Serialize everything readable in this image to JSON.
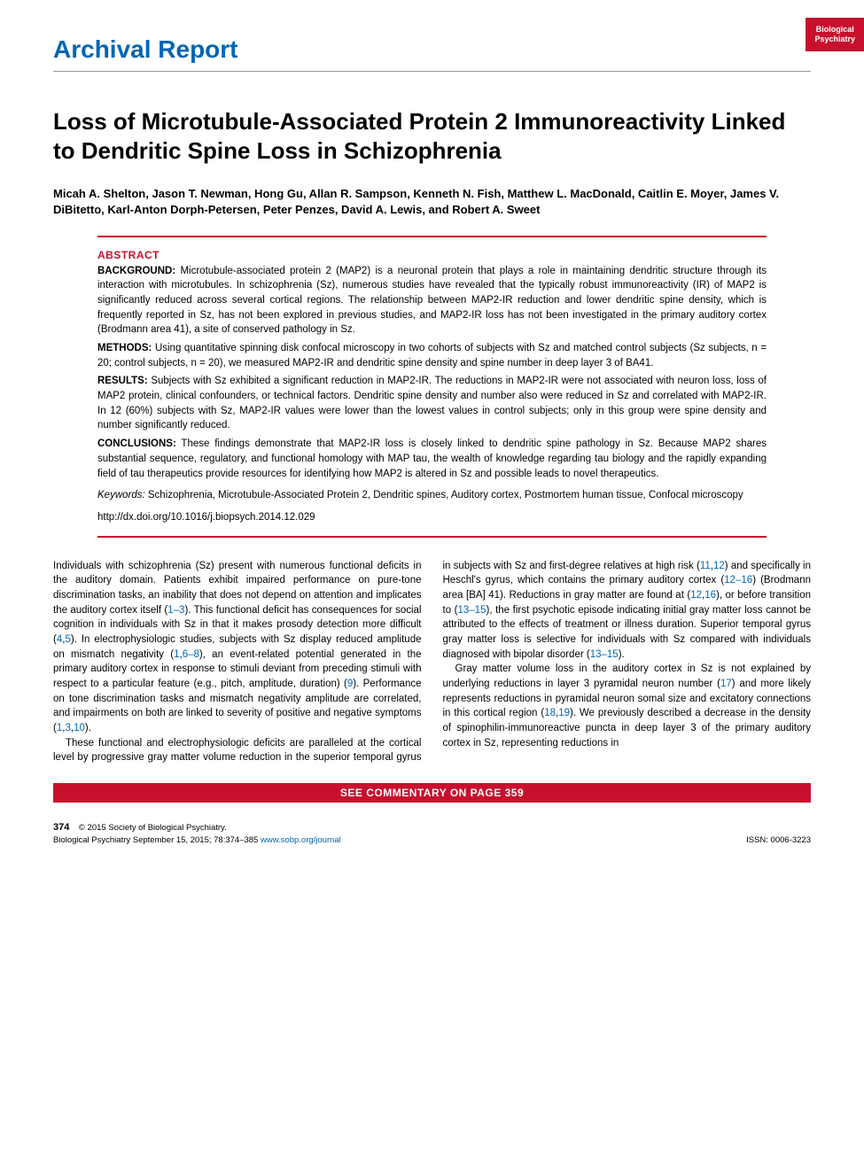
{
  "journal_tab": {
    "line1": "Biological",
    "line2": "Psychiatry",
    "bg_color": "#c8102e",
    "text_color": "#ffffff"
  },
  "section_label": "Archival Report",
  "section_label_color": "#0066b3",
  "article": {
    "title": "Loss of Microtubule-Associated Protein 2 Immunoreactivity Linked to Dendritic Spine Loss in Schizophrenia",
    "authors": "Micah A. Shelton, Jason T. Newman, Hong Gu, Allan R. Sampson, Kenneth N. Fish, Matthew L. MacDonald, Caitlin E. Moyer, James V. DiBitetto, Karl-Anton Dorph-Petersen, Peter Penzes, David A. Lewis, and Robert A. Sweet"
  },
  "abstract": {
    "heading": "ABSTRACT",
    "heading_color": "#c8102e",
    "background": {
      "label": "BACKGROUND:",
      "text": "Microtubule-associated protein 2 (MAP2) is a neuronal protein that plays a role in maintaining dendritic structure through its interaction with microtubules. In schizophrenia (Sz), numerous studies have revealed that the typically robust immunoreactivity (IR) of MAP2 is significantly reduced across several cortical regions. The relationship between MAP2-IR reduction and lower dendritic spine density, which is frequently reported in Sz, has not been explored in previous studies, and MAP2-IR loss has not been investigated in the primary auditory cortex (Brodmann area 41), a site of conserved pathology in Sz."
    },
    "methods": {
      "label": "METHODS:",
      "text": "Using quantitative spinning disk confocal microscopy in two cohorts of subjects with Sz and matched control subjects (Sz subjects, n = 20; control subjects, n = 20), we measured MAP2-IR and dendritic spine density and spine number in deep layer 3 of BA41."
    },
    "results": {
      "label": "RESULTS:",
      "text": "Subjects with Sz exhibited a significant reduction in MAP2-IR. The reductions in MAP2-IR were not associated with neuron loss, loss of MAP2 protein, clinical confounders, or technical factors. Dendritic spine density and number also were reduced in Sz and correlated with MAP2-IR. In 12 (60%) subjects with Sz, MAP2-IR values were lower than the lowest values in control subjects; only in this group were spine density and number significantly reduced."
    },
    "conclusions": {
      "label": "CONCLUSIONS:",
      "text": "These findings demonstrate that MAP2-IR loss is closely linked to dendritic spine pathology in Sz. Because MAP2 shares substantial sequence, regulatory, and functional homology with MAP tau, the wealth of knowledge regarding tau biology and the rapidly expanding field of tau therapeutics provide resources for identifying how MAP2 is altered in Sz and possible leads to novel therapeutics."
    },
    "keywords": {
      "label": "Keywords:",
      "text": "Schizophrenia, Microtubule-Associated Protein 2, Dendritic spines, Auditory cortex, Postmortem human tissue, Confocal microscopy"
    },
    "doi": "http://dx.doi.org/10.1016/j.biopsych.2014.12.029"
  },
  "body": {
    "p1_a": "Individuals with schizophrenia (Sz) present with numerous functional deficits in the auditory domain. Patients exhibit impaired performance on pure-tone discrimination tasks, an inability that does not depend on attention and implicates the auditory cortex itself (",
    "p1_ref1": "1–3",
    "p1_b": "). This functional deficit has consequences for social cognition in individuals with Sz in that it makes prosody detection more difficult (",
    "p1_ref2": "4",
    "p1_c": ",",
    "p1_ref3": "5",
    "p1_d": "). In electrophysiologic studies, subjects with Sz display reduced amplitude on mismatch negativity (",
    "p1_ref4": "1",
    "p1_e": ",",
    "p1_ref5": "6–8",
    "p1_f": "), an event-related potential generated in the primary auditory cortex in response to stimuli deviant from preceding stimuli with respect to a particular feature (e.g., pitch, amplitude, duration) (",
    "p1_ref6": "9",
    "p1_g": "). Performance on tone discrimination tasks and mismatch negativity amplitude are correlated, and impairments on both are linked to severity of positive and negative symptoms (",
    "p1_ref7": "1",
    "p1_h": ",",
    "p1_ref8": "3",
    "p1_i": ",",
    "p1_ref9": "10",
    "p1_j": ").",
    "p2_a": "These functional and electrophysiologic deficits are paralleled at the cortical level by progressive gray matter volume reduction in the superior temporal gyrus in subjects with Sz and first-degree relatives at high risk (",
    "p2_ref1": "11",
    "p2_b": ",",
    "p2_ref2": "12",
    "p2_c": ") and specifically in Heschl's gyrus, which contains the primary auditory cortex (",
    "p2_ref3": "12–16",
    "p2_d": ") (Brodmann area [BA] 41). Reductions in gray matter are found at (",
    "p2_ref4": "12",
    "p2_e": ",",
    "p2_ref5": "16",
    "p2_f": "), or before transition to (",
    "p2_ref6": "13–15",
    "p2_g": "), the first psychotic episode indicating initial gray matter loss cannot be attributed to the effects of treatment or illness duration. Superior temporal gyrus gray matter loss is selective for individuals with Sz compared with individuals diagnosed with bipolar disorder (",
    "p2_ref7": "13–15",
    "p2_h": ").",
    "p3_a": "Gray matter volume loss in the auditory cortex in Sz is not explained by underlying reductions in layer 3 pyramidal neuron number (",
    "p3_ref1": "17",
    "p3_b": ") and more likely represents reductions in pyramidal neuron somal size and excitatory connections in this cortical region (",
    "p3_ref2": "18",
    "p3_c": ",",
    "p3_ref3": "19",
    "p3_d": "). We previously described a decrease in the density of spinophilin-immunoreactive puncta in deep layer 3 of the primary auditory cortex in Sz, representing reductions in"
  },
  "commentary_bar": "SEE COMMENTARY ON PAGE 359",
  "footer": {
    "page_number": "374",
    "copyright": "© 2015 Society of Biological Psychiatry.",
    "citation": "Biological Psychiatry September 15, 2015; 78:374–385 ",
    "url": "www.sobp.org/journal",
    "issn": "ISSN: 0006-3223"
  },
  "colors": {
    "brand_red": "#c8102e",
    "link_blue": "#0066b3",
    "text": "#000000",
    "bg": "#ffffff"
  }
}
